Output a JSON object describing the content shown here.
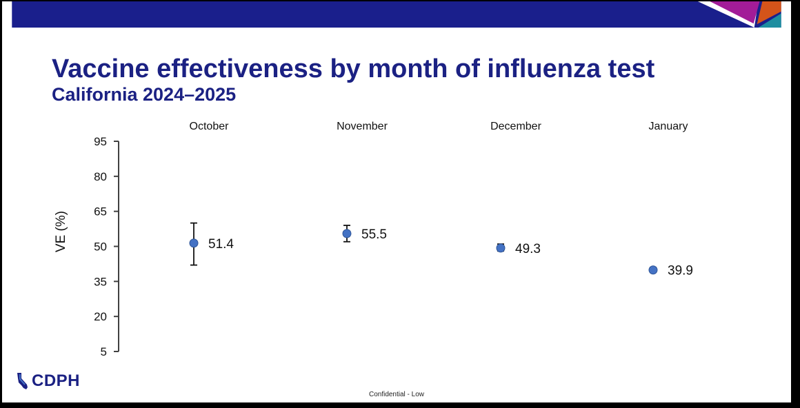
{
  "slide": {
    "title": "Vaccine effectiveness by month of influenza test",
    "subtitle": "California 2024–2025",
    "logo_text": "CDPH",
    "footer": "Confidential - Low"
  },
  "colors": {
    "header_bar": "#1a1f8c",
    "title": "#1b2183",
    "marker": "#4472c4",
    "accent_magenta": "#a21c98",
    "accent_orange": "#d4541a",
    "accent_teal": "#1e8ea0"
  },
  "chart_data": {
    "type": "scatter",
    "title": "",
    "xlabel": "",
    "ylabel": "VE (%)",
    "ylim": [
      5,
      95
    ],
    "yticks": [
      95,
      80,
      65,
      50,
      35,
      20,
      5
    ],
    "grid": false,
    "categories": [
      "October",
      "November",
      "December",
      "January"
    ],
    "values": [
      51.4,
      55.5,
      49.3,
      39.9
    ],
    "value_labels": [
      "51.4",
      "55.5",
      "49.3",
      "39.9"
    ],
    "error_bars": [
      {
        "lower": 42,
        "upper": 60
      },
      {
        "lower": 52,
        "upper": 59
      },
      {
        "lower": 48,
        "upper": 51
      },
      {
        "lower": 39,
        "upper": 41
      }
    ]
  }
}
